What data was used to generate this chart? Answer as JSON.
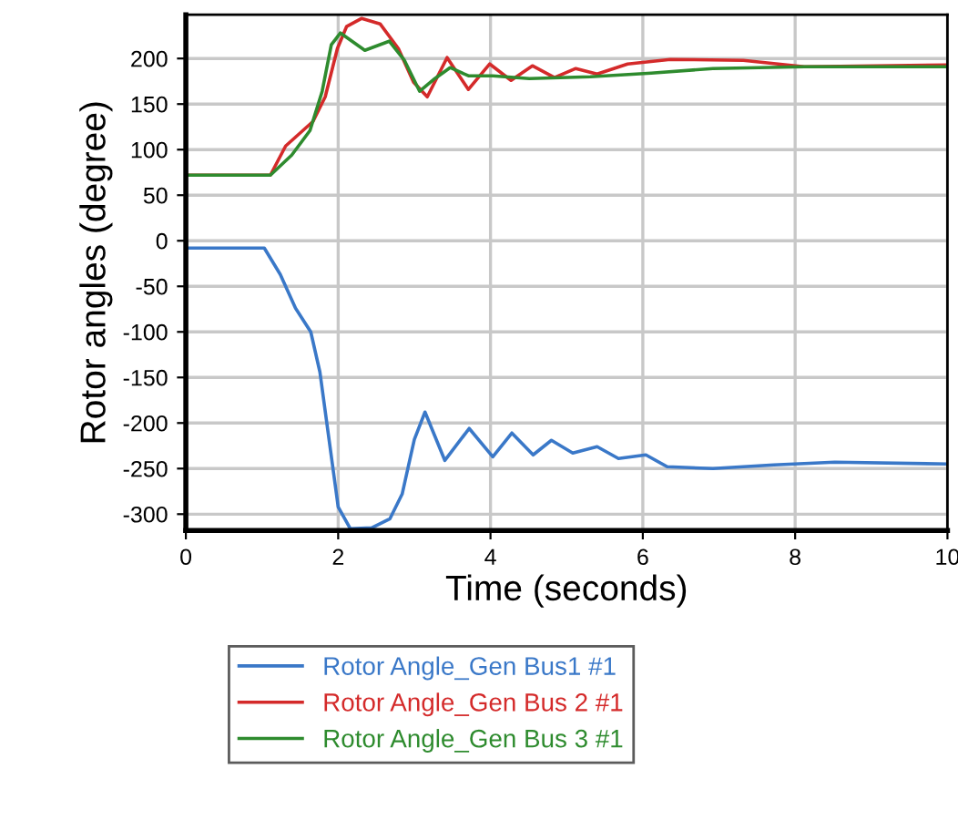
{
  "chart_data": {
    "type": "line",
    "xlabel": "Time (seconds)",
    "ylabel": "Rotor angles (degree)",
    "xlim": [
      0,
      10
    ],
    "xticks": [
      0,
      2,
      4,
      6,
      8,
      10
    ],
    "ylim": [
      -318,
      248
    ],
    "yticks": [
      -300,
      -250,
      -200,
      -150,
      -100,
      -50,
      0,
      50,
      100,
      150,
      200
    ],
    "grid": true,
    "legend": "bottom",
    "line_style": "solid",
    "series": [
      {
        "name": "Rotor Angle_Gen Bus1 #1",
        "color": "#3a78c8",
        "x": [
          0,
          1.03,
          1.24,
          1.44,
          1.64,
          1.76,
          1.88,
          2.0,
          2.16,
          2.44,
          2.68,
          2.84,
          3.0,
          3.14,
          3.4,
          3.72,
          4.03,
          4.28,
          4.56,
          4.8,
          5.08,
          5.4,
          5.68,
          6.04,
          6.32,
          6.92,
          7.72,
          8.52,
          10
        ],
        "values": [
          -8,
          -8,
          -37,
          -74,
          -100,
          -144,
          -218,
          -292,
          -316,
          -315,
          -305,
          -278,
          -218,
          -188,
          -241,
          -206,
          -237,
          -211,
          -235,
          -219,
          -233,
          -226,
          -239,
          -235,
          -248,
          -250,
          -246,
          -243,
          -245
        ]
      },
      {
        "name": "Rotor Angle_Gen Bus 2 #1",
        "color": "#d42a2a",
        "x": [
          0,
          1.11,
          1.31,
          1.67,
          1.83,
          1.99,
          2.11,
          2.31,
          2.55,
          2.79,
          2.99,
          3.17,
          3.43,
          3.71,
          3.99,
          4.27,
          4.55,
          4.84,
          5.12,
          5.4,
          5.8,
          6.36,
          7.32,
          8.12,
          10
        ],
        "values": [
          72,
          72,
          104,
          131,
          158,
          211,
          235,
          244,
          238,
          211,
          174,
          158,
          201,
          166,
          194,
          176,
          192,
          179,
          189,
          183,
          194,
          199,
          198,
          191,
          193
        ]
      },
      {
        "name": "Rotor Angle_Gen Bus 3 #1",
        "color": "#2e8b2e",
        "x": [
          0,
          1.11,
          1.39,
          1.63,
          1.79,
          1.91,
          2.03,
          2.35,
          2.67,
          2.87,
          3.07,
          3.27,
          3.47,
          3.71,
          4.03,
          4.51,
          5.31,
          6.11,
          6.92,
          8.12,
          10
        ],
        "values": [
          72,
          72,
          94,
          121,
          164,
          215,
          228,
          209,
          219,
          198,
          164,
          178,
          190,
          181,
          181,
          178,
          180,
          184,
          189,
          191,
          191
        ]
      }
    ]
  }
}
